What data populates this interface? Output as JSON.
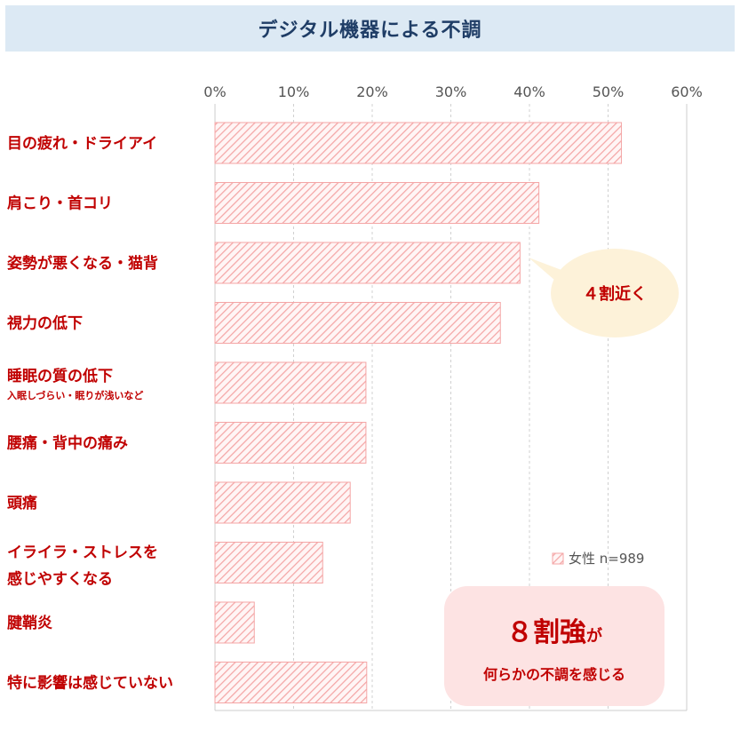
{
  "chart_data": {
    "type": "bar",
    "orientation": "horizontal",
    "title": "デジタル機器による不調",
    "categories": [
      {
        "label": "目の疲れ・ドライアイ",
        "sub": ""
      },
      {
        "label": "肩こり・首コリ",
        "sub": ""
      },
      {
        "label": "姿勢が悪くなる・猫背",
        "sub": ""
      },
      {
        "label": "視力の低下",
        "sub": ""
      },
      {
        "label": "睡眠の質の低下",
        "sub": "入眠しづらい・眠りが浅いなど"
      },
      {
        "label": "腰痛・背中の痛み",
        "sub": ""
      },
      {
        "label": "頭痛",
        "sub": ""
      },
      {
        "label": "イライラ・ストレスを|感じやすくなる",
        "sub": ""
      },
      {
        "label": "腱鞘炎",
        "sub": ""
      },
      {
        "label": "特に影響は感じていない",
        "sub": ""
      }
    ],
    "series": [
      {
        "name": "女性 n=989",
        "values": [
          51.7,
          41.2,
          38.8,
          36.3,
          19.2,
          19.2,
          17.2,
          13.7,
          5.0,
          19.3
        ]
      }
    ],
    "xlim": [
      0,
      60
    ],
    "xticks": [
      "0%",
      "10%",
      "20%",
      "30%",
      "40%",
      "50%",
      "60%"
    ],
    "grid": true,
    "legend_position": "right",
    "bar_color": "#f4a6a6",
    "annotations": {
      "bubble": "４割近く",
      "box_main": "８割強",
      "box_suffix": "が",
      "box_sub": "何らかの不調を感じる"
    }
  }
}
